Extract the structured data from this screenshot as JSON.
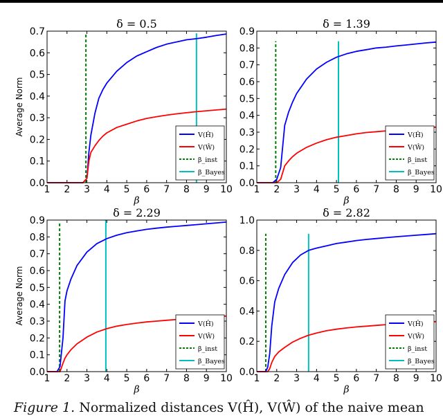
{
  "caption": {
    "label": "Figure 1.",
    "text": "Normalized distances V(Ĥ), V(Ŵ) of the naive mean"
  },
  "chart_data": [
    {
      "type": "line",
      "title": "δ = 0.5",
      "xlabel": "β",
      "ylabel": "Average Norm",
      "xlim": [
        1,
        10
      ],
      "ylim": [
        0,
        0.7
      ],
      "xticks": [
        "1",
        "2",
        "3",
        "4",
        "5",
        "6",
        "7",
        "8",
        "9",
        "10"
      ],
      "yticks": [
        "0.0",
        "0.1",
        "0.2",
        "0.3",
        "0.4",
        "0.5",
        "0.6",
        "0.7"
      ],
      "legend": "lower-right",
      "x": [
        1,
        2,
        2.8,
        3.0,
        3.1,
        3.2,
        3.4,
        3.6,
        3.8,
        4,
        4.5,
        5,
        5.5,
        6,
        6.5,
        7,
        7.5,
        8,
        8.5,
        9,
        9.5,
        10
      ],
      "series": [
        {
          "name": "V(Ĥ)",
          "color": "#0000ff",
          "values": [
            0,
            0,
            0,
            0.02,
            0.14,
            0.22,
            0.32,
            0.39,
            0.43,
            0.46,
            0.515,
            0.555,
            0.585,
            0.605,
            0.625,
            0.64,
            0.65,
            0.66,
            0.665,
            0.672,
            0.68,
            0.687
          ]
        },
        {
          "name": "V(Ŵ)",
          "color": "#ff0000",
          "values": [
            0,
            0,
            0,
            0.02,
            0.1,
            0.14,
            0.17,
            0.195,
            0.215,
            0.23,
            0.255,
            0.27,
            0.285,
            0.297,
            0.305,
            0.312,
            0.318,
            0.323,
            0.328,
            0.332,
            0.336,
            0.34
          ]
        }
      ],
      "vlines": [
        {
          "name": "β_inst",
          "color": "#008000",
          "dashed": true,
          "x": 2.95,
          "top": 0.69
        },
        {
          "name": "β_Bayes",
          "color": "#00bfbf",
          "dashed": false,
          "x": 8.5,
          "top": 0.69
        }
      ]
    },
    {
      "type": "line",
      "title": "δ = 1.39",
      "xlabel": "β",
      "ylabel": "",
      "xlim": [
        1,
        10
      ],
      "ylim": [
        0,
        0.9
      ],
      "xticks": [
        "1",
        "2",
        "3",
        "4",
        "5",
        "6",
        "7",
        "8",
        "9",
        "10"
      ],
      "yticks": [
        "0.0",
        "0.1",
        "0.2",
        "0.3",
        "0.4",
        "0.5",
        "0.6",
        "0.7",
        "0.8",
        "0.9"
      ],
      "legend": "lower-right",
      "x": [
        1,
        1.8,
        2.0,
        2.2,
        2.4,
        2.6,
        2.8,
        3.0,
        3.5,
        4,
        4.5,
        5,
        5.5,
        6,
        6.5,
        7,
        7.5,
        8,
        8.5,
        9,
        9.5,
        10
      ],
      "series": [
        {
          "name": "V(Ĥ)",
          "color": "#0000ff",
          "values": [
            0,
            0,
            0.02,
            0.09,
            0.34,
            0.42,
            0.48,
            0.53,
            0.615,
            0.675,
            0.715,
            0.745,
            0.765,
            0.78,
            0.79,
            0.8,
            0.805,
            0.812,
            0.818,
            0.824,
            0.83,
            0.835
          ]
        },
        {
          "name": "V(Ŵ)",
          "color": "#ff0000",
          "values": [
            0,
            0,
            0,
            0.02,
            0.1,
            0.13,
            0.155,
            0.175,
            0.21,
            0.235,
            0.255,
            0.27,
            0.28,
            0.29,
            0.298,
            0.303,
            0.308,
            0.313,
            0.318,
            0.322,
            0.326,
            0.33
          ]
        }
      ],
      "vlines": [
        {
          "name": "β_inst",
          "color": "#008000",
          "dashed": true,
          "x": 1.95,
          "top": 0.84
        },
        {
          "name": "β_Bayes",
          "color": "#00bfbf",
          "dashed": false,
          "x": 5.1,
          "top": 0.84
        }
      ]
    },
    {
      "type": "line",
      "title": "δ = 2.29",
      "xlabel": "β",
      "ylabel": "Average Norm",
      "xlim": [
        1,
        10
      ],
      "ylim": [
        0,
        0.9
      ],
      "xticks": [
        "1",
        "2",
        "3",
        "4",
        "5",
        "6",
        "7",
        "8",
        "9",
        "10"
      ],
      "yticks": [
        "0.0",
        "0.1",
        "0.2",
        "0.3",
        "0.4",
        "0.5",
        "0.6",
        "0.7",
        "0.8",
        "0.9"
      ],
      "legend": "lower-right",
      "x": [
        1,
        1.5,
        1.65,
        1.8,
        1.9,
        2.0,
        2.2,
        2.5,
        3,
        3.5,
        4,
        4.5,
        5,
        5.5,
        6,
        6.5,
        7,
        7.5,
        8,
        8.5,
        9,
        9.5,
        10
      ],
      "series": [
        {
          "name": "V(Ĥ)",
          "color": "#0000ff",
          "values": [
            0,
            0,
            0.03,
            0.2,
            0.42,
            0.48,
            0.55,
            0.63,
            0.71,
            0.76,
            0.79,
            0.81,
            0.825,
            0.835,
            0.845,
            0.852,
            0.858,
            0.863,
            0.868,
            0.873,
            0.878,
            0.883,
            0.888
          ]
        },
        {
          "name": "V(Ŵ)",
          "color": "#ff0000",
          "values": [
            0,
            0,
            0,
            0.05,
            0.08,
            0.1,
            0.13,
            0.165,
            0.205,
            0.235,
            0.255,
            0.27,
            0.28,
            0.288,
            0.295,
            0.3,
            0.305,
            0.31,
            0.314,
            0.318,
            0.322,
            0.326,
            0.33
          ]
        }
      ],
      "vlines": [
        {
          "name": "β_inst",
          "color": "#008000",
          "dashed": true,
          "x": 1.63,
          "top": 0.88
        },
        {
          "name": "β_Bayes",
          "color": "#00bfbf",
          "dashed": false,
          "x": 3.95,
          "top": 0.9
        }
      ]
    },
    {
      "type": "line",
      "title": "δ = 2.82",
      "xlabel": "β",
      "ylabel": "",
      "xlim": [
        1,
        10
      ],
      "ylim": [
        0,
        1.0
      ],
      "xticks": [
        "1",
        "2",
        "3",
        "4",
        "5",
        "6",
        "7",
        "8",
        "9",
        "10"
      ],
      "yticks": [
        "0.0",
        "0.2",
        "0.4",
        "0.6",
        "0.8",
        "1.0"
      ],
      "legend": "lower-right",
      "x": [
        1,
        1.45,
        1.55,
        1.65,
        1.75,
        1.9,
        2.1,
        2.4,
        2.8,
        3.2,
        3.6,
        4,
        4.5,
        5,
        5.5,
        6,
        6.5,
        7,
        7.5,
        8,
        8.5,
        9,
        9.5,
        10
      ],
      "series": [
        {
          "name": "V(Ĥ)",
          "color": "#0000ff",
          "values": [
            0,
            0,
            0.03,
            0.12,
            0.3,
            0.46,
            0.55,
            0.64,
            0.72,
            0.77,
            0.8,
            0.815,
            0.83,
            0.845,
            0.855,
            0.865,
            0.872,
            0.878,
            0.884,
            0.89,
            0.895,
            0.9,
            0.905,
            0.91
          ]
        },
        {
          "name": "V(Ŵ)",
          "color": "#ff0000",
          "values": [
            0,
            0,
            0,
            0.02,
            0.06,
            0.1,
            0.13,
            0.16,
            0.195,
            0.22,
            0.24,
            0.255,
            0.27,
            0.28,
            0.288,
            0.295,
            0.3,
            0.305,
            0.31,
            0.314,
            0.318,
            0.322,
            0.326,
            0.33
          ]
        }
      ],
      "vlines": [
        {
          "name": "β_inst",
          "color": "#008000",
          "dashed": true,
          "x": 1.45,
          "top": 0.91
        },
        {
          "name": "β_Bayes",
          "color": "#00bfbf",
          "dashed": false,
          "x": 3.6,
          "top": 0.91
        }
      ]
    }
  ]
}
